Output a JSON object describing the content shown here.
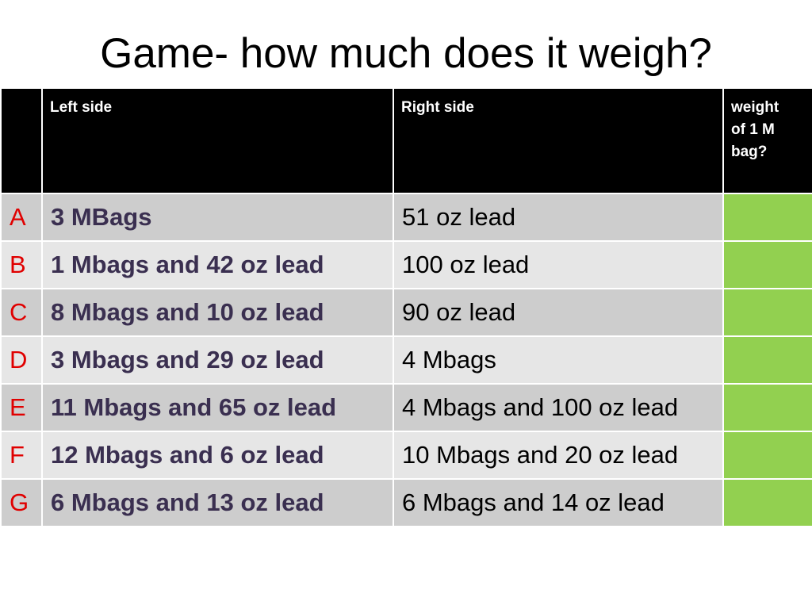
{
  "title": "Game- how much does it weigh?",
  "table": {
    "headers": {
      "letter": "",
      "left": "Left side",
      "right": "Right side",
      "weight": "weight of 1 M bag?"
    },
    "rows": [
      {
        "letter": "A",
        "left": "3 MBags",
        "right": "51 oz lead",
        "weight": ""
      },
      {
        "letter": "B",
        "left": "1 Mbags and 42 oz lead",
        "right": "100 oz lead",
        "weight": ""
      },
      {
        "letter": "C",
        "left": "8 Mbags and 10 oz lead",
        "right": "90 oz lead",
        "weight": ""
      },
      {
        "letter": "D",
        "left": "3 Mbags and 29 oz lead",
        "right": "4 Mbags",
        "weight": ""
      },
      {
        "letter": "E",
        "left": "11 Mbags and 65 oz lead",
        "right": "4 Mbags and 100 oz lead",
        "weight": ""
      },
      {
        "letter": "F",
        "left": "12 Mbags and 6 oz lead",
        "right": "10 Mbags and 20 oz lead",
        "weight": ""
      },
      {
        "letter": "G",
        "left": "6 Mbags and 13 oz lead",
        "right": "6 Mbags and 14 oz lead",
        "weight": ""
      }
    ]
  },
  "colors": {
    "header_bg": "#000000",
    "header_text": "#ffffff",
    "row_odd": "#cdcdcd",
    "row_even": "#e6e6e6",
    "letter_text": "#e00000",
    "left_text": "#3a2f50",
    "weight_fill": "#92d050"
  }
}
